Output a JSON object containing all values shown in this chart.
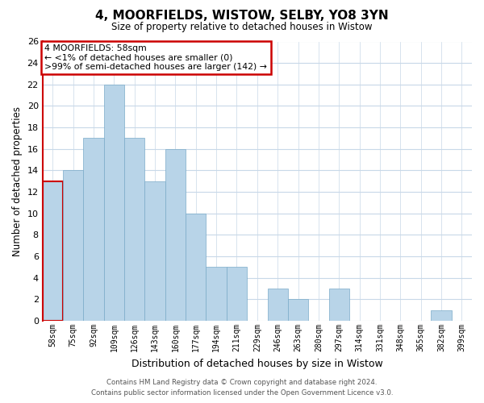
{
  "title": "4, MOORFIELDS, WISTOW, SELBY, YO8 3YN",
  "subtitle": "Size of property relative to detached houses in Wistow",
  "xlabel": "Distribution of detached houses by size in Wistow",
  "ylabel": "Number of detached properties",
  "bar_labels": [
    "58sqm",
    "75sqm",
    "92sqm",
    "109sqm",
    "126sqm",
    "143sqm",
    "160sqm",
    "177sqm",
    "194sqm",
    "211sqm",
    "229sqm",
    "246sqm",
    "263sqm",
    "280sqm",
    "297sqm",
    "314sqm",
    "331sqm",
    "348sqm",
    "365sqm",
    "382sqm",
    "399sqm"
  ],
  "bar_values": [
    13,
    14,
    17,
    22,
    17,
    13,
    16,
    10,
    5,
    5,
    0,
    3,
    2,
    0,
    3,
    0,
    0,
    0,
    0,
    1,
    0
  ],
  "bar_color": "#b8d4e8",
  "bar_edge_color": "#7aaac8",
  "highlight_bar_index": 0,
  "highlight_bar_color": "#cc0000",
  "annotation_title": "4 MOORFIELDS: 58sqm",
  "annotation_line1": "← <1% of detached houses are smaller (0)",
  "annotation_line2": ">99% of semi-detached houses are larger (142) →",
  "annotation_box_facecolor": "#ffffff",
  "annotation_box_edgecolor": "#cc0000",
  "ylim": [
    0,
    26
  ],
  "yticks": [
    0,
    2,
    4,
    6,
    8,
    10,
    12,
    14,
    16,
    18,
    20,
    22,
    24,
    26
  ],
  "footer_line1": "Contains HM Land Registry data © Crown copyright and database right 2024.",
  "footer_line2": "Contains public sector information licensed under the Open Government Licence v3.0.",
  "background_color": "#ffffff",
  "grid_color": "#c8d8e8",
  "left_spine_color": "#cc0000"
}
